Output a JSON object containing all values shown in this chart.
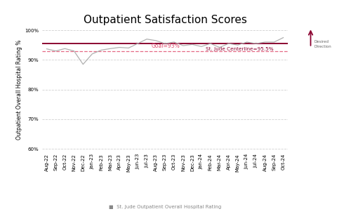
{
  "title": "Outpatient Satisfaction Scores",
  "ylabel": "Outpatient Overall Hospital Rating %",
  "xlabel_legend": "St. Jude Outpatient Overall Hospital Rating",
  "ylim": [
    0.595,
    1.005
  ],
  "yticks": [
    0.6,
    0.7,
    0.8,
    0.9,
    1.0
  ],
  "ytick_labels": [
    "60%",
    "70%",
    "80%",
    "90%",
    "100%"
  ],
  "goal_value": 0.93,
  "centerline_value": 0.955,
  "goal_label": "Goal=93%",
  "centerline_label": "St. Jude Centerline=95.5%",
  "desired_direction_label": "Desired\nDirection",
  "x_labels": [
    "Aug-22",
    "Sep-22",
    "Oct-22",
    "Nov-22",
    "Dec-22",
    "Jan-23",
    "Feb-23",
    "Mar-23",
    "Apr-23",
    "May-23",
    "Jun-23",
    "Jul-23",
    "Aug-23",
    "Sep-23",
    "Oct-23",
    "Nov-23",
    "Dec-23",
    "Jan-24",
    "Feb-24",
    "Mar-24",
    "Apr-24",
    "May-24",
    "Jun-24",
    "Jul-24",
    "Aug-24",
    "Sep-24",
    "Oct-24"
  ],
  "data_values": [
    0.937,
    0.93,
    0.938,
    0.93,
    0.885,
    0.92,
    0.933,
    0.938,
    0.942,
    0.94,
    0.955,
    0.97,
    0.965,
    0.955,
    0.96,
    0.948,
    0.952,
    0.945,
    0.955,
    0.942,
    0.955,
    0.95,
    0.96,
    0.955,
    0.96,
    0.96,
    0.975
  ],
  "line_color": "#b0b0b0",
  "centerline_color": "#8b0030",
  "goal_color": "#e05070",
  "background_color": "#ffffff",
  "grid_color": "#d0d0d0",
  "title_fontsize": 11,
  "ylabel_fontsize": 5.5,
  "tick_fontsize": 5,
  "annotation_fontsize": 5.5,
  "legend_fontsize": 5
}
